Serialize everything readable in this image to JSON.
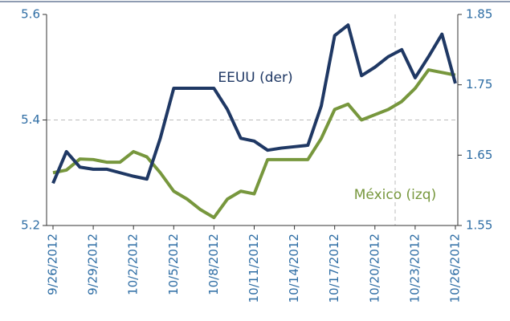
{
  "chart_data": {
    "type": "line",
    "categories": [
      "9/26/2012",
      null,
      null,
      "9/29/2012",
      null,
      null,
      "10/2/2012",
      null,
      null,
      "10/5/2012",
      null,
      null,
      "10/8/2012",
      null,
      null,
      "10/11/2012",
      null,
      null,
      "10/14/2012",
      null,
      null,
      "10/17/2012",
      null,
      null,
      "10/20/2012",
      null,
      null,
      "10/23/2012",
      null,
      null,
      "10/26/2012"
    ],
    "series": [
      {
        "name": "México (izq)",
        "color": "#77973d",
        "axis": "y",
        "values": [
          5.3,
          5.305,
          5.326,
          5.325,
          5.32,
          5.32,
          5.34,
          5.33,
          5.3,
          5.265,
          5.25,
          5.23,
          5.215,
          5.25,
          5.265,
          5.26,
          5.325,
          5.325,
          5.325,
          5.325,
          5.365,
          5.42,
          5.43,
          5.4,
          5.41,
          5.42,
          5.435,
          5.46,
          5.495,
          5.49,
          5.485
        ]
      },
      {
        "name": "EEUU (der)",
        "color": "#1f3864",
        "axis": "y2",
        "values": [
          1.61,
          1.655,
          1.633,
          1.63,
          1.63,
          1.625,
          1.62,
          1.616,
          1.674,
          1.745,
          1.745,
          1.745,
          1.745,
          1.715,
          1.674,
          1.67,
          1.657,
          1.66,
          1.662,
          1.664,
          1.72,
          1.82,
          1.835,
          1.763,
          1.775,
          1.79,
          1.8,
          1.76,
          1.79,
          1.822,
          1.752
        ]
      }
    ],
    "ylim": [
      5.2,
      5.6
    ],
    "yticks": [
      5.2,
      5.4,
      5.6
    ],
    "y2lim": [
      1.55,
      1.85
    ],
    "y2ticks": [
      1.55,
      1.65,
      1.75,
      1.85
    ],
    "grid": true
  }
}
